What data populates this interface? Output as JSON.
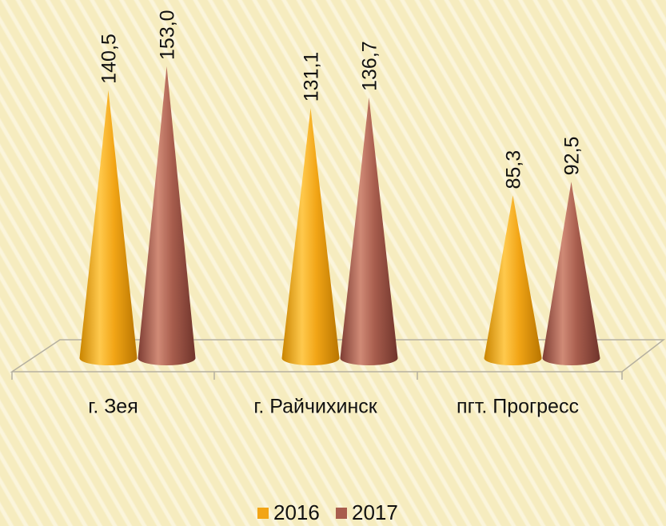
{
  "chart_data": {
    "type": "cone",
    "categories": [
      "г. Зея",
      "г. Райчихинск",
      "пгт. Прогресс"
    ],
    "series": [
      {
        "name": "2016",
        "color": "#f2a516",
        "values": [
          140.5,
          131.1,
          85.3
        ],
        "value_labels": [
          "140,5",
          "131,1",
          "85,3"
        ]
      },
      {
        "name": "2017",
        "color": "#a85d4d",
        "values": [
          153.0,
          136.7,
          92.5
        ],
        "value_labels": [
          "153,0",
          "136,7",
          "92,5"
        ]
      }
    ],
    "legend": "bottom"
  }
}
